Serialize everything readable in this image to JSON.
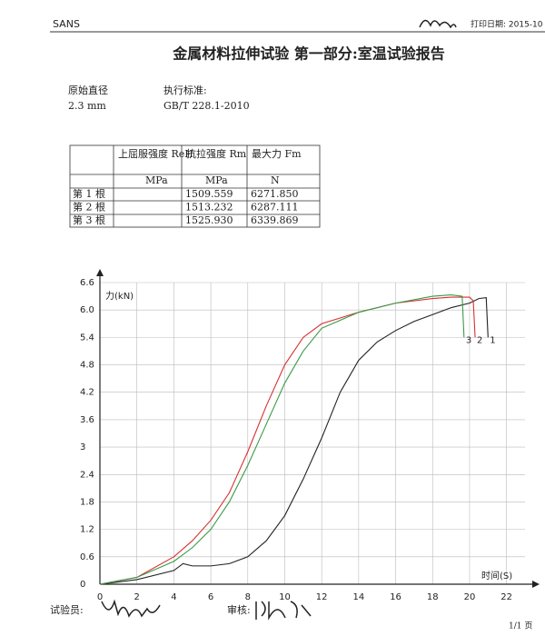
{
  "header": {
    "left": "SANS",
    "print_date": "打印日期: 2015-10"
  },
  "title": "金属材料拉伸试验 第一部分:室温试验报告",
  "info": {
    "diameter_label": "原始直径",
    "diameter": "2.3 mm",
    "standard_label": "执行标准:",
    "standard": "GB/T 228.1-2010"
  },
  "table": {
    "headers": [
      "上屈服强度 ReH",
      "抗拉强度 Rm",
      "最大力 Fm"
    ],
    "units": [
      "MPa",
      "MPa",
      "N"
    ],
    "rows": [
      [
        "第 1 根",
        "1509.559",
        "6271.850"
      ],
      [
        "第 2 根",
        "1513.232",
        "6287.111"
      ],
      [
        "第 3 根",
        "1525.930",
        "6339.869"
      ]
    ]
  },
  "chart_data": {
    "type": "line",
    "x_label": "时间(S)",
    "y_label": "力(kN)",
    "xlim": [
      0,
      23
    ],
    "ylim": [
      0,
      6.6
    ],
    "xticks": [
      0,
      2,
      4,
      6,
      8,
      10,
      12,
      14,
      16,
      18,
      20,
      22
    ],
    "yticks": [
      0,
      0.6,
      1.2,
      1.8,
      2.4,
      3,
      3.6,
      4.2,
      4.8,
      5.4,
      {
        "value": 6,
        "label": "6.0"
      },
      6.6
    ],
    "grid": true,
    "series": [
      {
        "name": "1",
        "color": "#222222",
        "x": [
          0,
          2,
          4,
          4.5,
          5,
          6,
          7,
          8,
          9,
          10,
          11,
          12,
          13,
          14,
          15,
          16,
          17,
          18,
          19,
          20,
          20.5,
          20.9,
          21.0
        ],
        "values": [
          0,
          0.1,
          0.3,
          0.45,
          0.4,
          0.4,
          0.45,
          0.6,
          0.95,
          1.5,
          2.3,
          3.2,
          4.2,
          4.9,
          5.3,
          5.55,
          5.75,
          5.9,
          6.05,
          6.15,
          6.25,
          6.27,
          5.4
        ]
      },
      {
        "name": "2",
        "color": "#d83030",
        "x": [
          0,
          2,
          4,
          5,
          6,
          7,
          8,
          9,
          10,
          11,
          12,
          14,
          16,
          18,
          19,
          20,
          20.2,
          20.3
        ],
        "values": [
          0,
          0.15,
          0.6,
          0.95,
          1.4,
          2.0,
          2.9,
          3.9,
          4.8,
          5.4,
          5.7,
          5.95,
          6.15,
          6.25,
          6.28,
          6.28,
          6.2,
          5.4
        ]
      },
      {
        "name": "3",
        "color": "#3a9a4a",
        "x": [
          0,
          2,
          4,
          5,
          6,
          7,
          8,
          9,
          10,
          11,
          12,
          14,
          16,
          18,
          19,
          19.6,
          19.7
        ],
        "values": [
          0,
          0.15,
          0.5,
          0.8,
          1.2,
          1.8,
          2.6,
          3.5,
          4.4,
          5.1,
          5.6,
          5.95,
          6.15,
          6.3,
          6.33,
          6.3,
          5.4
        ]
      }
    ]
  },
  "footer": {
    "tester": "试验员:",
    "reviewer": "审核:",
    "page": "1/1 页"
  }
}
